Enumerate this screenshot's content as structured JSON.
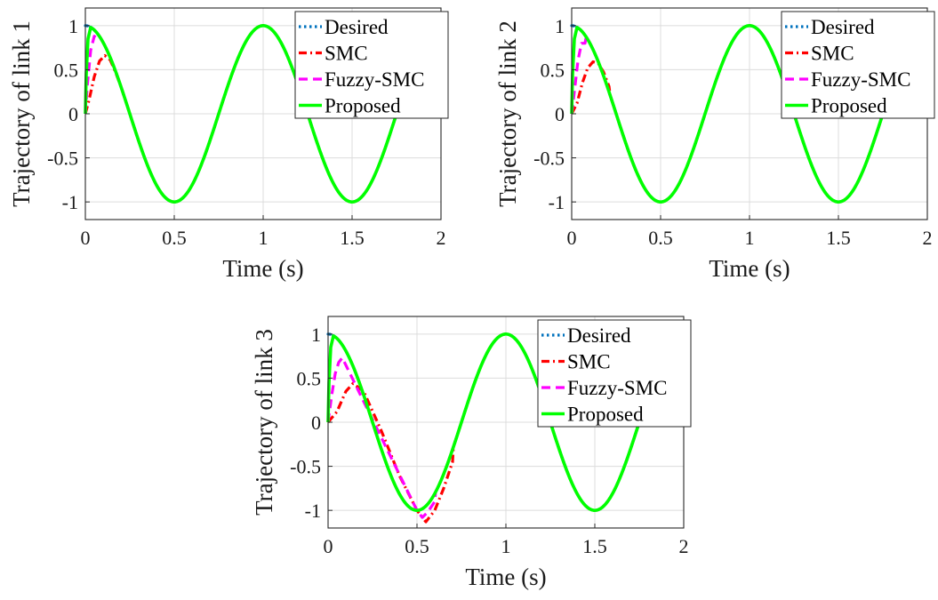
{
  "chart_data": [
    {
      "type": "line",
      "ylabel": "Trajectory of link 1",
      "xlabel": "Time (s)",
      "xlim": [
        0,
        2
      ],
      "ylim": [
        -1.2,
        1.2
      ],
      "xticks": [
        "0",
        "0.5",
        "1",
        "1.5",
        "2"
      ],
      "yticks": [
        "-1",
        "-0.5",
        "0",
        "0.5",
        "1"
      ],
      "grid": true,
      "legend_position": "top-right",
      "series": [
        {
          "name": "Desired",
          "color": "#0072bd",
          "style": "dotted",
          "x": [
            0,
            0.25,
            0.5,
            0.75,
            1.0,
            1.25,
            1.5,
            1.75,
            2.0
          ],
          "y": [
            1,
            0,
            -1,
            0,
            1,
            0,
            -1,
            0,
            1
          ]
        },
        {
          "name": "SMC",
          "color": "#ff0000",
          "style": "dashdot",
          "x": [
            0,
            0.02,
            0.05,
            0.08,
            0.11,
            0.14,
            0.17,
            0.2
          ],
          "y": [
            0,
            0.15,
            0.42,
            0.6,
            0.66,
            0.61,
            0.47,
            0.31
          ]
        },
        {
          "name": "Fuzzy-SMC",
          "color": "#ff00ff",
          "style": "dashed",
          "x": [
            0,
            0.01,
            0.03,
            0.05,
            0.07
          ],
          "y": [
            0,
            0.3,
            0.72,
            0.88,
            0.85
          ]
        },
        {
          "name": "Proposed",
          "color": "#00ff00",
          "style": "solid",
          "x": [
            0,
            0.005,
            0.015,
            0.03,
            0.045
          ],
          "y": [
            0,
            0.45,
            0.85,
            0.98,
            0.96
          ]
        }
      ]
    },
    {
      "type": "line",
      "ylabel": "Trajectory of link 2",
      "xlabel": "Time (s)",
      "xlim": [
        0,
        2
      ],
      "ylim": [
        -1.2,
        1.2
      ],
      "xticks": [
        "0",
        "0.5",
        "1",
        "1.5",
        "2"
      ],
      "yticks": [
        "-1",
        "-0.5",
        "0",
        "0.5",
        "1"
      ],
      "grid": true,
      "legend_position": "top-right",
      "series": [
        {
          "name": "Desired",
          "color": "#0072bd",
          "style": "dotted",
          "x": [
            0,
            0.25,
            0.5,
            0.75,
            1.0,
            1.25,
            1.5,
            1.75,
            2.0
          ],
          "y": [
            1,
            0,
            -1,
            0,
            1,
            0,
            -1,
            0,
            1
          ]
        },
        {
          "name": "SMC",
          "color": "#ff0000",
          "style": "dashdot",
          "x": [
            0,
            0.03,
            0.06,
            0.09,
            0.12,
            0.15,
            0.18,
            0.21
          ],
          "y": [
            0,
            0.12,
            0.35,
            0.52,
            0.59,
            0.57,
            0.47,
            0.31
          ]
        },
        {
          "name": "Fuzzy-SMC",
          "color": "#ff00ff",
          "style": "dashed",
          "x": [
            0,
            0.015,
            0.035,
            0.055,
            0.075
          ],
          "y": [
            0,
            0.25,
            0.6,
            0.8,
            0.8
          ]
        },
        {
          "name": "Proposed",
          "color": "#00ff00",
          "style": "solid",
          "x": [
            0,
            0.005,
            0.015,
            0.03,
            0.045
          ],
          "y": [
            0,
            0.45,
            0.85,
            0.98,
            0.96
          ]
        }
      ]
    },
    {
      "type": "line",
      "ylabel": "Trajectory of link 3",
      "xlabel": "Time (s)",
      "xlim": [
        0,
        2
      ],
      "ylim": [
        -1.2,
        1.2
      ],
      "xticks": [
        "0",
        "0.5",
        "1",
        "1.5",
        "2"
      ],
      "yticks": [
        "-1",
        "-0.5",
        "0",
        "0.5",
        "1"
      ],
      "grid": true,
      "legend_position": "top-right",
      "series": [
        {
          "name": "Desired",
          "color": "#0072bd",
          "style": "dotted",
          "x": [
            0,
            0.25,
            0.5,
            0.75,
            1.0,
            1.25,
            1.5,
            1.75,
            2.0
          ],
          "y": [
            1,
            0,
            -1,
            0,
            1,
            0,
            -1,
            0,
            1
          ]
        },
        {
          "name": "SMC",
          "color": "#ff0000",
          "style": "dashdot",
          "x": [
            0,
            0.05,
            0.1,
            0.14,
            0.2,
            0.3,
            0.4,
            0.5,
            0.55,
            0.6,
            0.65,
            0.7
          ],
          "y": [
            0,
            0.12,
            0.35,
            0.44,
            0.35,
            -0.1,
            -0.6,
            -1.0,
            -1.13,
            -1.0,
            -0.75,
            -0.45
          ]
        },
        {
          "name": "Fuzzy-SMC",
          "color": "#ff00ff",
          "style": "dashed",
          "x": [
            0,
            0.02,
            0.04,
            0.06,
            0.08,
            0.5,
            0.53,
            0.56,
            0.6
          ],
          "y": [
            0,
            0.3,
            0.55,
            0.68,
            0.73,
            -1.0,
            -1.08,
            -1.02,
            -0.9
          ]
        },
        {
          "name": "Proposed",
          "color": "#00ff00",
          "style": "solid",
          "x": [
            0,
            0.005,
            0.015,
            0.03,
            0.045
          ],
          "y": [
            0,
            0.45,
            0.85,
            0.98,
            0.96
          ]
        }
      ]
    }
  ]
}
